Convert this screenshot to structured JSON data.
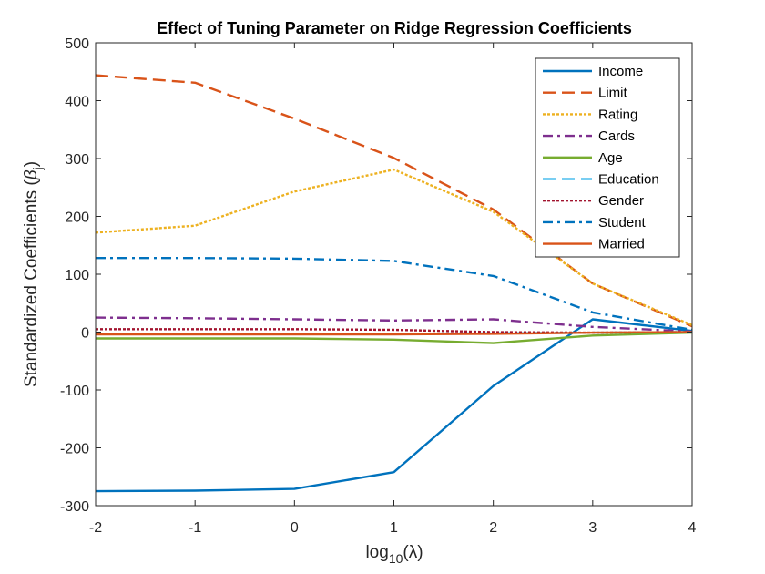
{
  "chart_data": {
    "type": "line",
    "title": "Effect of Tuning Parameter on Ridge Regression Coefficients",
    "xlabel": {
      "prefix": "log",
      "sub": "10",
      "suffix": "(λ)"
    },
    "ylabel": {
      "prefix": "Standardized Coefficients (",
      "symbol": "β",
      "sub": "j",
      "suffix": ")"
    },
    "x": [
      -2,
      -1,
      0,
      1,
      2,
      3,
      4
    ],
    "xlim": [
      -2,
      4
    ],
    "ylim": [
      -300,
      500
    ],
    "xticks": [
      "-2",
      "-1",
      "0",
      "1",
      "2",
      "3",
      "4"
    ],
    "yticks": [
      "-300",
      "-200",
      "-100",
      "0",
      "100",
      "200",
      "300",
      "400",
      "500"
    ],
    "grid": false,
    "legend_position": "top-right",
    "series": [
      {
        "name": "Income",
        "color": "#0072BD",
        "dash": "solid",
        "values": [
          -275,
          -274,
          -271,
          -242,
          -93,
          22,
          2
        ]
      },
      {
        "name": "Limit",
        "color": "#D95319",
        "dash": "dashed",
        "values": [
          444,
          431,
          369,
          301,
          212,
          84,
          10
        ]
      },
      {
        "name": "Rating",
        "color": "#EDB120",
        "dash": "dotted",
        "values": [
          172,
          184,
          243,
          281,
          208,
          84,
          12
        ]
      },
      {
        "name": "Cards",
        "color": "#7E2F8E",
        "dash": "dashdot",
        "values": [
          25,
          24,
          22,
          20,
          22,
          9,
          1
        ]
      },
      {
        "name": "Age",
        "color": "#77AC30",
        "dash": "solid",
        "values": [
          -11,
          -11,
          -11,
          -13,
          -19,
          -6,
          -1
        ]
      },
      {
        "name": "Education",
        "color": "#4DBEEE",
        "dash": "dashed",
        "values": [
          -3,
          -3,
          -3,
          -3,
          -2,
          -1,
          0
        ]
      },
      {
        "name": "Gender",
        "color": "#A2142F",
        "dash": "dotted",
        "values": [
          5,
          5,
          5,
          4,
          0,
          -1,
          0
        ]
      },
      {
        "name": "Student",
        "color": "#0072BD",
        "dash": "dashdot",
        "values": [
          128,
          128,
          127,
          123,
          97,
          34,
          4
        ]
      },
      {
        "name": "Married",
        "color": "#D95319",
        "dash": "solid",
        "values": [
          -4,
          -4,
          -4,
          -4,
          -3,
          -1,
          0
        ]
      }
    ]
  }
}
